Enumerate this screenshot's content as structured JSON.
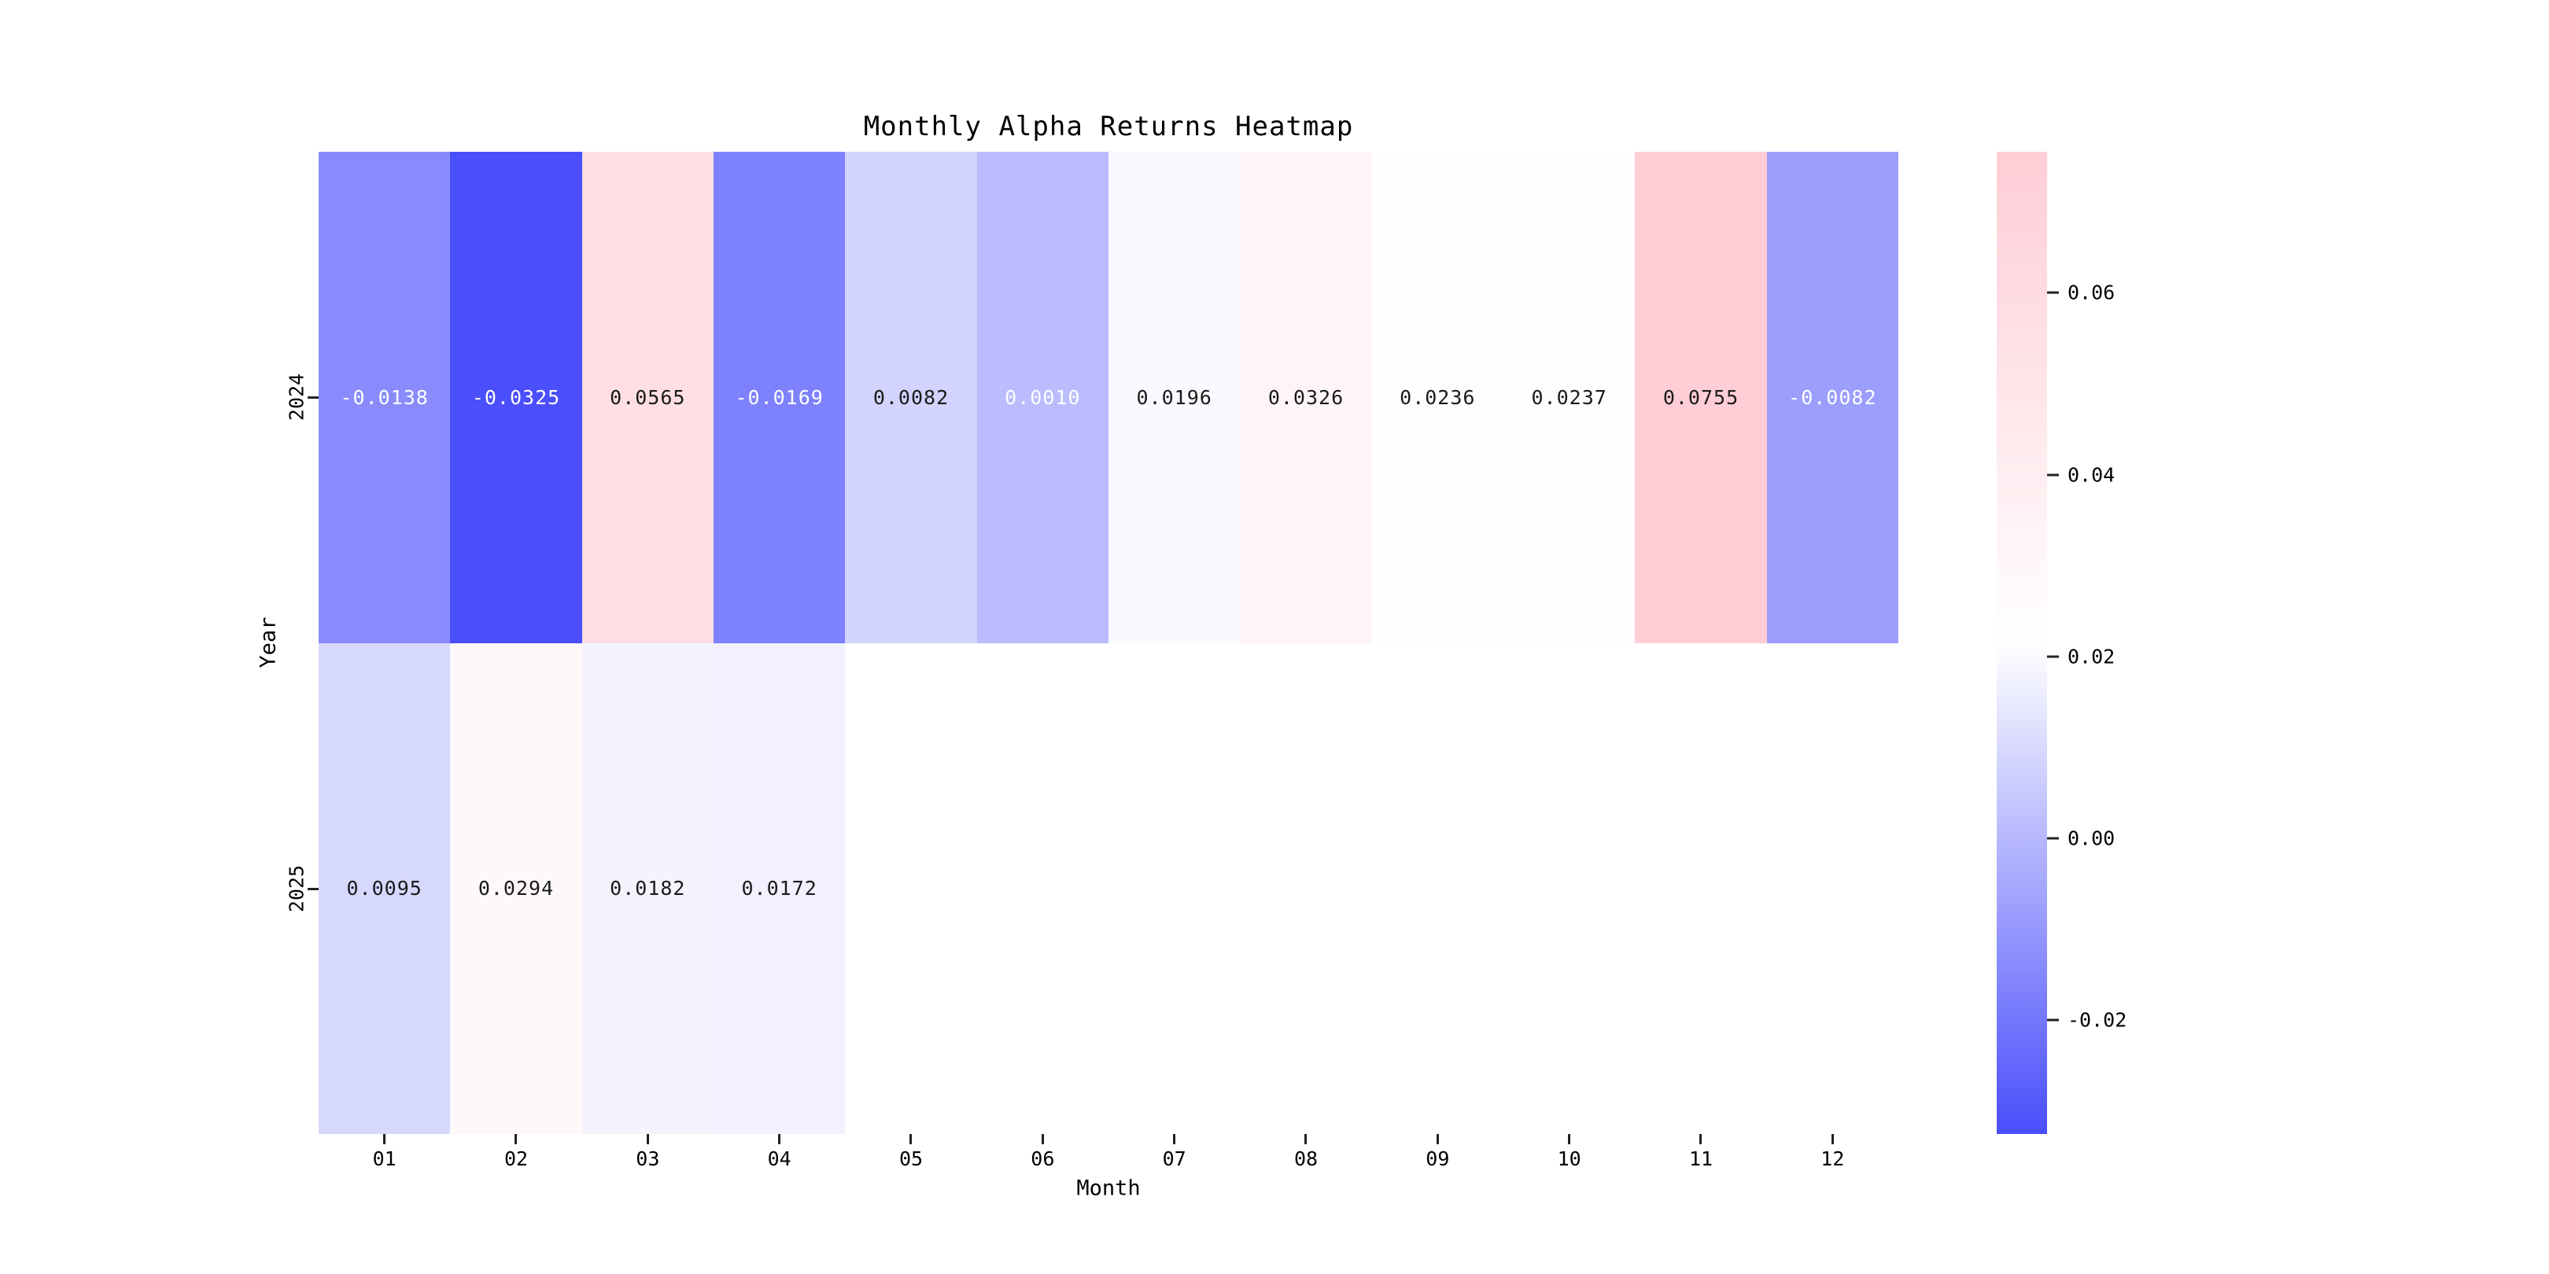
{
  "chart_data": {
    "type": "heatmap",
    "title": "Monthly Alpha Returns Heatmap",
    "xlabel": "Month",
    "ylabel": "Year",
    "x_categories": [
      "01",
      "02",
      "03",
      "04",
      "05",
      "06",
      "07",
      "08",
      "09",
      "10",
      "11",
      "12"
    ],
    "y_categories": [
      "2024",
      "2025"
    ],
    "series": [
      {
        "name": "2024",
        "values": [
          -0.0138,
          -0.0325,
          0.0565,
          -0.0169,
          0.0082,
          0.001,
          0.0196,
          0.0326,
          0.0236,
          0.0237,
          0.0755,
          -0.0082
        ]
      },
      {
        "name": "2025",
        "values": [
          0.0095,
          0.0294,
          0.0182,
          0.0172,
          null,
          null,
          null,
          null,
          null,
          null,
          null,
          null
        ]
      }
    ],
    "cell_labels": [
      [
        "-0.0138",
        "-0.0325",
        "0.0565",
        "-0.0169",
        "0.0082",
        "0.0010",
        "0.0196",
        "0.0326",
        "0.0236",
        "0.0237",
        "0.0755",
        "-0.0082"
      ],
      [
        "0.0095",
        "0.0294",
        "0.0182",
        "0.0172",
        "",
        "",
        "",
        "",
        "",
        "",
        "",
        ""
      ]
    ],
    "cell_colors": [
      [
        "#898BFC",
        "#4A4EFB",
        "#FFDFE4",
        "#7E81FC",
        "#D2D3FE",
        "#BABCFD",
        "#F9F9FF",
        "#FFF5F7",
        "#FFFDFD",
        "#FFFDFD",
        "#FFCDD6",
        "#9B9EFD"
      ],
      [
        "#D7D8FE",
        "#FFF8F9",
        "#F4F4FF",
        "#F1F1FF",
        "#FFFFFF",
        "#FFFFFF",
        "#FFFFFF",
        "#FFFFFF",
        "#FFFFFF",
        "#FFFFFF",
        "#FFFFFF",
        "#FFFFFF"
      ]
    ],
    "cell_text_colors": [
      [
        "#FFFFFF",
        "#FFFFFF",
        "#1A1A1A",
        "#FFFFFF",
        "#1A1A1A",
        "#FFFFFF",
        "#1A1A1A",
        "#1A1A1A",
        "#1A1A1A",
        "#1A1A1A",
        "#1A1A1A",
        "#FFFFFF"
      ],
      [
        "#1A1A1A",
        "#1A1A1A",
        "#1A1A1A",
        "#1A1A1A",
        "",
        "",
        "",
        "",
        "",
        "",
        "",
        ""
      ]
    ],
    "colorbar": {
      "vmin": -0.0325,
      "vmax": 0.0755,
      "tick_labels": [
        "0.06",
        "0.04",
        "0.02",
        "0.00",
        "-0.02"
      ],
      "tick_values": [
        0.06,
        0.04,
        0.02,
        0.0,
        -0.02
      ],
      "tick_positions_pct": [
        14.35,
        32.87,
        51.39,
        69.91,
        88.43
      ],
      "gradient_top_color": "#FFCDD6",
      "gradient_mid_color": "#FFFFFF",
      "gradient_bottom_color": "#4A4EFB"
    },
    "nan_color": "#FFFFFF",
    "grid": false,
    "legend_position": "right-colorbar"
  }
}
